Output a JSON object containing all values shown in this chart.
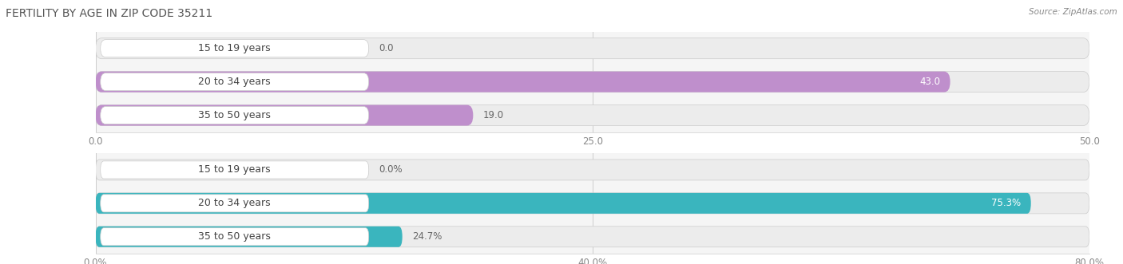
{
  "title": "FERTILITY BY AGE IN ZIP CODE 35211",
  "source": "Source: ZipAtlas.com",
  "top_chart": {
    "categories": [
      "15 to 19 years",
      "20 to 34 years",
      "35 to 50 years"
    ],
    "values": [
      0.0,
      43.0,
      19.0
    ],
    "bar_color": "#bf8fcc",
    "bar_color_small": "#cda8d8",
    "xlim": [
      0,
      50
    ],
    "xticks": [
      0.0,
      25.0,
      50.0
    ],
    "value_suffix": ""
  },
  "bottom_chart": {
    "categories": [
      "15 to 19 years",
      "20 to 34 years",
      "35 to 50 years"
    ],
    "values": [
      0.0,
      75.3,
      24.7
    ],
    "bar_color": "#3ab5be",
    "bar_color_small": "#6dcdd5",
    "xlim": [
      0,
      80
    ],
    "xticks": [
      0.0,
      40.0,
      80.0
    ],
    "value_suffix": "%"
  },
  "bar_height": 0.62,
  "bg_bar_color": "#e6e6e6",
  "category_font_size": 9,
  "value_font_size": 8.5,
  "title_font_size": 10,
  "source_font_size": 7.5,
  "tick_font_size": 8.5,
  "label_pill_color": "#ffffff",
  "label_pill_edge": "#dddddd"
}
